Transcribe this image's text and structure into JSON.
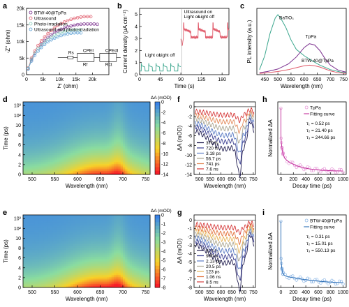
{
  "panels": {
    "a": {
      "label": "a",
      "type": "scatter",
      "xlabel": "Z' (ohm)",
      "ylabel": "-Z'' (ohm)",
      "xlim": [
        0,
        25000
      ],
      "ylim": [
        0,
        20000
      ],
      "xticks": [
        {
          "v": 0,
          "t": "0"
        },
        {
          "v": 5000,
          "t": "5k"
        },
        {
          "v": 10000,
          "t": "10k"
        },
        {
          "v": 15000,
          "t": "15k"
        },
        {
          "v": 20000,
          "t": "20k"
        }
      ],
      "yticks": [
        {
          "v": 0,
          "t": "0"
        },
        {
          "v": 5000,
          "t": "5k"
        },
        {
          "v": 10000,
          "t": "10k"
        },
        {
          "v": 15000,
          "t": "15k"
        },
        {
          "v": 20000,
          "t": "20k"
        }
      ],
      "legend": [
        "BTW-40@TpPa",
        "Ultrasound",
        "Photo-irradiation",
        "Ultrasound and photo-irradiation"
      ],
      "circuit": {
        "labels": [
          "Rs",
          "CPEI",
          "Rf",
          "CPEdl",
          "Rct"
        ]
      },
      "series": [
        {
          "name": "BTW-40@TpPa",
          "color": "#7b2f8e",
          "x": [
            500,
            1500,
            2500,
            3500,
            4500,
            5500,
            6500,
            7500,
            8500,
            9500,
            10500,
            11500,
            12500,
            13500,
            14500,
            15500,
            16500,
            17500,
            18500,
            19500,
            20500,
            21500
          ],
          "y": [
            1800,
            4500,
            6400,
            7900,
            9200,
            10300,
            11200,
            12000,
            12700,
            13200,
            13700,
            14100,
            14400,
            14700,
            14900,
            15100,
            15200,
            15300,
            15300,
            15300,
            15300,
            15200
          ]
        },
        {
          "name": "Ultrasound",
          "color": "#e05a6a",
          "x": [
            500,
            1500,
            2500,
            3500,
            4500,
            5500,
            6500,
            7500,
            8500,
            9500,
            10500,
            11500,
            12500,
            13500,
            14500,
            15500,
            16500,
            17500,
            18500,
            19500
          ],
          "y": [
            2000,
            5000,
            7100,
            8800,
            10200,
            11400,
            12400,
            13300,
            14100,
            14800,
            15400,
            15900,
            16300,
            16700,
            17000,
            17200,
            17400,
            17500,
            17500,
            17500
          ]
        },
        {
          "name": "Photo-irradiation",
          "color": "#8fcfbf",
          "x": [
            500,
            1500,
            2500,
            3500,
            4500,
            5500,
            6500,
            7500,
            8500,
            9500,
            10500,
            11500,
            12500,
            13500,
            14500,
            15500,
            16500
          ],
          "y": [
            1900,
            4700,
            6500,
            7900,
            9000,
            9900,
            10700,
            11300,
            11900,
            12300,
            12700,
            13000,
            13200,
            13400,
            13500,
            13500,
            13500
          ]
        },
        {
          "name": "Ultrasound and photo-irradiation",
          "color": "#5b9fd4",
          "x": [
            500,
            1500,
            2500,
            3500,
            4500,
            5500,
            6500,
            7500,
            8500,
            9500,
            10500,
            11500,
            12500,
            13500,
            14500,
            15500,
            16500
          ],
          "y": [
            1700,
            4100,
            5800,
            7100,
            8200,
            9100,
            9900,
            10500,
            11000,
            11400,
            11800,
            12100,
            12300,
            12500,
            12600,
            12600,
            12600
          ]
        }
      ]
    },
    "b": {
      "label": "b",
      "type": "line",
      "xlabel": "Time (s)",
      "ylabel": "Current density (μA cm⁻²)",
      "xlim": [
        0,
        195
      ],
      "ylim": [
        0,
        5.5
      ],
      "xticks": [
        {
          "v": 0,
          "t": "0"
        },
        {
          "v": 45,
          "t": "45"
        },
        {
          "v": 90,
          "t": "90"
        },
        {
          "v": 135,
          "t": "135"
        },
        {
          "v": 180,
          "t": "180"
        }
      ],
      "yticks": [
        {
          "v": 0,
          "t": "0"
        },
        {
          "v": 1,
          "t": "1"
        },
        {
          "v": 2,
          "t": "2"
        },
        {
          "v": 3,
          "t": "3"
        },
        {
          "v": 4,
          "t": "4"
        },
        {
          "v": 5,
          "t": "5"
        }
      ],
      "annotations": [
        "Light on",
        "Light off",
        "Ultrasound on",
        "Light on",
        "Light off"
      ],
      "color": "#3aa68d",
      "color2": "#e05a6a"
    },
    "c": {
      "label": "c",
      "type": "line",
      "xlabel": "Wavelength (nm)",
      "ylabel": "PL intensity (a.u.)",
      "xlim": [
        420,
        760
      ],
      "xticks": [
        {
          "v": 450,
          "t": "450"
        },
        {
          "v": 500,
          "t": "500"
        },
        {
          "v": 550,
          "t": "550"
        },
        {
          "v": 600,
          "t": "600"
        },
        {
          "v": 650,
          "t": "650"
        },
        {
          "v": 700,
          "t": "700"
        },
        {
          "v": 750,
          "t": "750"
        }
      ],
      "series": [
        {
          "name": "BaTiO₃",
          "color": "#3aa68d",
          "x": [
            430,
            450,
            470,
            490,
            500,
            510,
            530,
            550,
            570,
            600,
            630,
            660,
            700,
            740,
            760
          ],
          "y": [
            0.08,
            0.3,
            0.65,
            0.9,
            0.95,
            0.9,
            0.75,
            0.55,
            0.4,
            0.3,
            0.22,
            0.15,
            0.08,
            0.04,
            0.03
          ]
        },
        {
          "name": "TpPa",
          "color": "#7b2f8e",
          "x": [
            430,
            460,
            500,
            540,
            570,
            600,
            620,
            640,
            660,
            680,
            700,
            730,
            760
          ],
          "y": [
            0.03,
            0.05,
            0.09,
            0.17,
            0.28,
            0.43,
            0.49,
            0.47,
            0.38,
            0.25,
            0.15,
            0.07,
            0.04
          ]
        },
        {
          "name": "BTW-40@TpPa",
          "color": "#e05a6a",
          "x": [
            430,
            460,
            500,
            540,
            570,
            600,
            620,
            640,
            660,
            680,
            700,
            730,
            760
          ],
          "y": [
            0.02,
            0.03,
            0.05,
            0.08,
            0.11,
            0.14,
            0.15,
            0.14,
            0.12,
            0.09,
            0.06,
            0.03,
            0.02
          ]
        }
      ]
    },
    "d": {
      "label": "d",
      "type": "heatmap",
      "xlabel": "Wavelength (nm)",
      "ylabel": "Time (ps)",
      "cblabel": "ΔA (mOD)",
      "xticks": [
        {
          "v": 500,
          "t": "500"
        },
        {
          "v": 550,
          "t": "550"
        },
        {
          "v": 600,
          "t": "600"
        },
        {
          "v": 650,
          "t": "650"
        },
        {
          "v": 700,
          "t": "700"
        },
        {
          "v": 750,
          "t": "750"
        }
      ],
      "yticks": [
        "0",
        "2",
        "4",
        "6",
        "8",
        "10",
        "10²",
        "10³"
      ],
      "cbticks": [
        "0",
        "-2",
        "-4",
        "-6",
        "-8",
        "-10",
        "-12",
        "-14"
      ]
    },
    "e": {
      "label": "e",
      "type": "heatmap",
      "xlabel": "Wavelength (nm)",
      "ylabel": "Time (ps)",
      "cblabel": "ΔA (mOD)",
      "xticks": [
        {
          "v": 500,
          "t": "500"
        },
        {
          "v": 550,
          "t": "550"
        },
        {
          "v": 600,
          "t": "600"
        },
        {
          "v": 650,
          "t": "650"
        },
        {
          "v": 700,
          "t": "700"
        },
        {
          "v": 750,
          "t": "750"
        }
      ],
      "yticks": [
        "0",
        "2",
        "4",
        "6",
        "8",
        "10",
        "10²",
        "10³"
      ],
      "cbticks": [
        "0",
        "-1",
        "-2",
        "-3",
        "-4",
        "-5",
        "-6",
        "-7",
        "-8"
      ]
    },
    "f": {
      "label": "f",
      "type": "line",
      "xlabel": "Wavelength (nm)",
      "ylabel": "ΔA (mOD)",
      "xlim": [
        475,
        760
      ],
      "ylim": [
        -14,
        1
      ],
      "xticks": [
        {
          "v": 500,
          "t": "500"
        },
        {
          "v": 550,
          "t": "550"
        },
        {
          "v": 600,
          "t": "600"
        },
        {
          "v": 650,
          "t": "650"
        },
        {
          "v": 700,
          "t": "700"
        },
        {
          "v": 750,
          "t": "750"
        }
      ],
      "yticks": [
        {
          "v": 0,
          "t": "0"
        },
        {
          "v": -2,
          "t": "-2"
        },
        {
          "v": -4,
          "t": "-4"
        },
        {
          "v": -6,
          "t": "-6"
        },
        {
          "v": -8,
          "t": "-8"
        },
        {
          "v": -10,
          "t": "-10"
        },
        {
          "v": -12,
          "t": "-12"
        },
        {
          "v": -14,
          "t": "-14"
        }
      ],
      "legend": [
        "370 fs",
        "720 fs",
        "3.18 ps",
        "56.7 ps",
        "741 ps",
        "7.6 ns"
      ],
      "colors": [
        "#1f1b4e",
        "#3b3f91",
        "#5b7cc4",
        "#a9a48f",
        "#e38a5b",
        "#d63c3c"
      ],
      "scales": [
        1.0,
        0.83,
        0.68,
        0.52,
        0.36,
        0.2
      ]
    },
    "g": {
      "label": "g",
      "type": "line",
      "xlabel": "Wavelength (nm)",
      "ylabel": "ΔA (mOD)",
      "xlim": [
        475,
        760
      ],
      "ylim": [
        -8,
        0.6
      ],
      "xticks": [
        {
          "v": 500,
          "t": "500"
        },
        {
          "v": 550,
          "t": "550"
        },
        {
          "v": 600,
          "t": "600"
        },
        {
          "v": 650,
          "t": "650"
        },
        {
          "v": 700,
          "t": "700"
        },
        {
          "v": 750,
          "t": "750"
        }
      ],
      "yticks": [
        {
          "v": 0,
          "t": "0"
        },
        {
          "v": -1,
          "t": "-1"
        },
        {
          "v": -2,
          "t": "-2"
        },
        {
          "v": -3,
          "t": "-3"
        },
        {
          "v": -4,
          "t": "-4"
        },
        {
          "v": -5,
          "t": "-5"
        },
        {
          "v": -6,
          "t": "-6"
        },
        {
          "v": -7,
          "t": "-7"
        },
        {
          "v": -8,
          "t": "-8"
        }
      ],
      "legend": [
        "528 fs",
        "900 fs",
        "2.13 ps",
        "20.5 ps",
        "123 ps",
        "1.06 ns",
        "8.5 ns"
      ],
      "colors": [
        "#1f1b4e",
        "#3b3f91",
        "#5b7cc4",
        "#a9a48f",
        "#e6b35a",
        "#e3743f",
        "#d63c3c"
      ],
      "scales": [
        1.0,
        0.86,
        0.72,
        0.58,
        0.45,
        0.32,
        0.18
      ]
    },
    "h": {
      "label": "h",
      "type": "scatter",
      "xlabel": "Decay time (ps)",
      "ylabel": "Normalized ΔA",
      "xlim": [
        -50,
        1050
      ],
      "xticks": [
        {
          "v": 0,
          "t": "0"
        },
        {
          "v": 200,
          "t": "200"
        },
        {
          "v": 400,
          "t": "400"
        },
        {
          "v": 600,
          "t": "600"
        },
        {
          "v": 800,
          "t": "800"
        },
        {
          "v": 1000,
          "t": "1000"
        }
      ],
      "legend": [
        "TpPa",
        "Fitting curve"
      ],
      "taus": [
        "τ₁ = 0.52 ps",
        "τ₂ = 21.40 ps",
        "τ₃ = 244.66 ps"
      ],
      "color": "#e79ad8",
      "fitcolor": "#c2309c"
    },
    "i": {
      "label": "i",
      "type": "scatter",
      "xlabel": "Decay time (ps)",
      "ylabel": "Normalized ΔA",
      "xlim": [
        -50,
        1050
      ],
      "xticks": [
        {
          "v": 0,
          "t": "0"
        },
        {
          "v": 200,
          "t": "200"
        },
        {
          "v": 400,
          "t": "400"
        },
        {
          "v": 600,
          "t": "600"
        },
        {
          "v": 800,
          "t": "800"
        },
        {
          "v": 1000,
          "t": "1000"
        }
      ],
      "legend": [
        "BTW-40@TpPa",
        "Fitting curve"
      ],
      "taus": [
        "τ₁ = 0.31 ps",
        "τ₂ = 15.01 ps",
        "τ₃ = 550.13 ps"
      ],
      "color": "#8fb8e6",
      "fitcolor": "#2a6db5"
    }
  }
}
